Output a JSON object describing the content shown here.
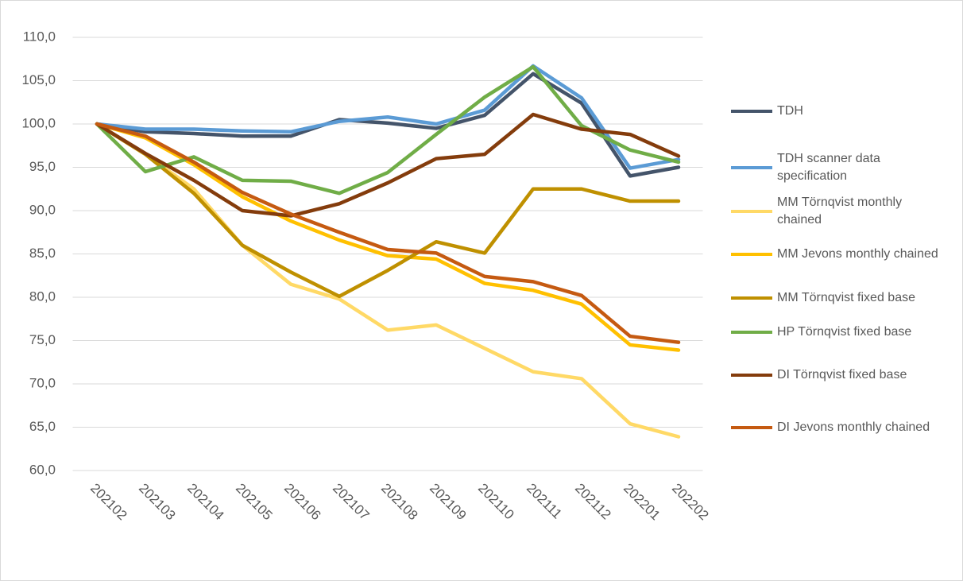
{
  "chart_data": {
    "type": "line",
    "categories": [
      "202102",
      "202103",
      "202104",
      "202105",
      "202106",
      "202107",
      "202108",
      "202109",
      "202110",
      "202111",
      "202112",
      "202201",
      "202202"
    ],
    "series": [
      {
        "name": "TDH",
        "color": "#44546a",
        "values": [
          100,
          99.1,
          98.9,
          98.6,
          98.6,
          100.5,
          100.1,
          99.5,
          101.0,
          105.8,
          102.4,
          94.0,
          95.0
        ]
      },
      {
        "name": "TDH scanner data specification",
        "color": "#5b9bd5",
        "values": [
          100,
          99.4,
          99.4,
          99.2,
          99.1,
          100.3,
          100.8,
          100.0,
          101.6,
          106.7,
          103.0,
          94.9,
          95.9
        ]
      },
      {
        "name": "MM Törnqvist monthly chained",
        "color": "#ffd966",
        "values": [
          100,
          96.5,
          92.5,
          86.0,
          81.5,
          79.8,
          76.2,
          76.8,
          74.1,
          71.4,
          70.6,
          65.4,
          63.9
        ]
      },
      {
        "name": "MM Jevons monthly chained",
        "color": "#ffc000",
        "values": [
          100,
          98.4,
          95.3,
          91.6,
          88.8,
          86.6,
          84.8,
          84.4,
          81.6,
          80.8,
          79.2,
          74.5,
          73.9
        ]
      },
      {
        "name": "MM Törnqvist fixed base",
        "color": "#bf9000",
        "values": [
          100,
          96.5,
          92.0,
          86.0,
          82.9,
          80.1,
          83.1,
          86.4,
          85.1,
          92.5,
          92.5,
          91.1,
          91.1
        ]
      },
      {
        "name": "HP Törnqvist fixed base",
        "color": "#70ad47",
        "values": [
          100,
          94.5,
          96.2,
          93.5,
          93.4,
          92.0,
          94.4,
          98.8,
          103.1,
          106.6,
          99.8,
          97.0,
          95.6
        ]
      },
      {
        "name": "DI Törnqvist fixed base",
        "color": "#843c0c",
        "values": [
          100,
          96.6,
          93.5,
          90.0,
          89.4,
          90.8,
          93.2,
          96.0,
          96.5,
          101.1,
          99.4,
          98.8,
          96.3
        ]
      },
      {
        "name": "DI Jevons monthly chained",
        "color": "#c55a11",
        "values": [
          100,
          98.6,
          95.6,
          92.1,
          89.6,
          87.5,
          85.5,
          85.1,
          82.4,
          81.8,
          80.2,
          75.5,
          74.8
        ]
      }
    ],
    "ylim": [
      60,
      110
    ],
    "yticks": [
      {
        "value": 60,
        "label": "60,0"
      },
      {
        "value": 65,
        "label": "65,0"
      },
      {
        "value": 70,
        "label": "70,0"
      },
      {
        "value": 75,
        "label": "75,0"
      },
      {
        "value": 80,
        "label": "80,0"
      },
      {
        "value": 85,
        "label": "85,0"
      },
      {
        "value": 90,
        "label": "90,0"
      },
      {
        "value": 95,
        "label": "95,0"
      },
      {
        "value": 100,
        "label": "100,0"
      },
      {
        "value": 105,
        "label": "105,0"
      },
      {
        "value": 110,
        "label": "110,0"
      }
    ],
    "grid": true
  }
}
